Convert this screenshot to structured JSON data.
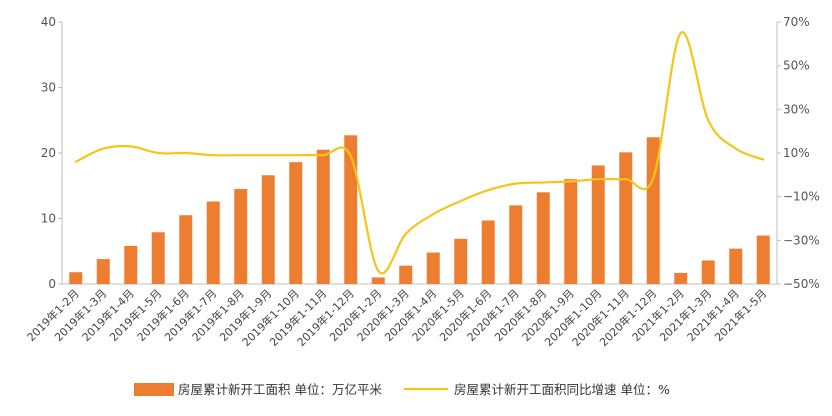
{
  "chart_data": {
    "type": "bar",
    "categories": [
      "2019年1-2月",
      "2019年1-3月",
      "2019年1-4月",
      "2019年1-5月",
      "2019年1-6月",
      "2019年1-7月",
      "2019年1-8月",
      "2019年1-9月",
      "2019年1-10月",
      "2019年1-11月",
      "2019年1-12月",
      "2020年1-2月",
      "2020年1-3月",
      "2020年1-4月",
      "2020年1-5月",
      "2020年1-6月",
      "2020年1-7月",
      "2020年1-8月",
      "2020年1-9月",
      "2020年1-10月",
      "2020年1-11月",
      "2020年1-12月",
      "2021年1-2月",
      "2021年1-3月",
      "2021年1-4月",
      "2021年1-5月"
    ],
    "series": [
      {
        "name": "房屋累计新开工面积 单位：万亿平米",
        "type": "bar",
        "axis": "left",
        "color": "#ED7D31",
        "values": [
          1.8,
          3.8,
          5.8,
          7.9,
          10.5,
          12.6,
          14.5,
          16.6,
          18.6,
          20.5,
          22.7,
          1.0,
          2.8,
          4.8,
          6.9,
          9.7,
          12.0,
          14.0,
          16.0,
          18.1,
          20.1,
          22.4,
          1.7,
          3.6,
          5.4,
          7.4
        ]
      },
      {
        "name": "房屋累计新开工面积同比增速 单位：%",
        "type": "line",
        "axis": "right",
        "color": "#F5C518",
        "values": [
          6,
          12,
          13,
          10,
          10,
          9,
          9,
          9,
          9,
          9,
          8.5,
          -44,
          -27,
          -18,
          -12,
          -7,
          -4,
          -3.5,
          -3,
          -2,
          -2,
          -1.5,
          65,
          25,
          12,
          7
        ]
      }
    ],
    "yleft": {
      "min": 0,
      "max": 40,
      "ticks": [
        0,
        10,
        20,
        30,
        40
      ]
    },
    "yright": {
      "min": -50,
      "max": 70,
      "ticks": [
        "-50%",
        "-30%",
        "-10%",
        "10%",
        "30%",
        "50%",
        "70%"
      ]
    },
    "legend_position": "bottom",
    "grid": false
  }
}
